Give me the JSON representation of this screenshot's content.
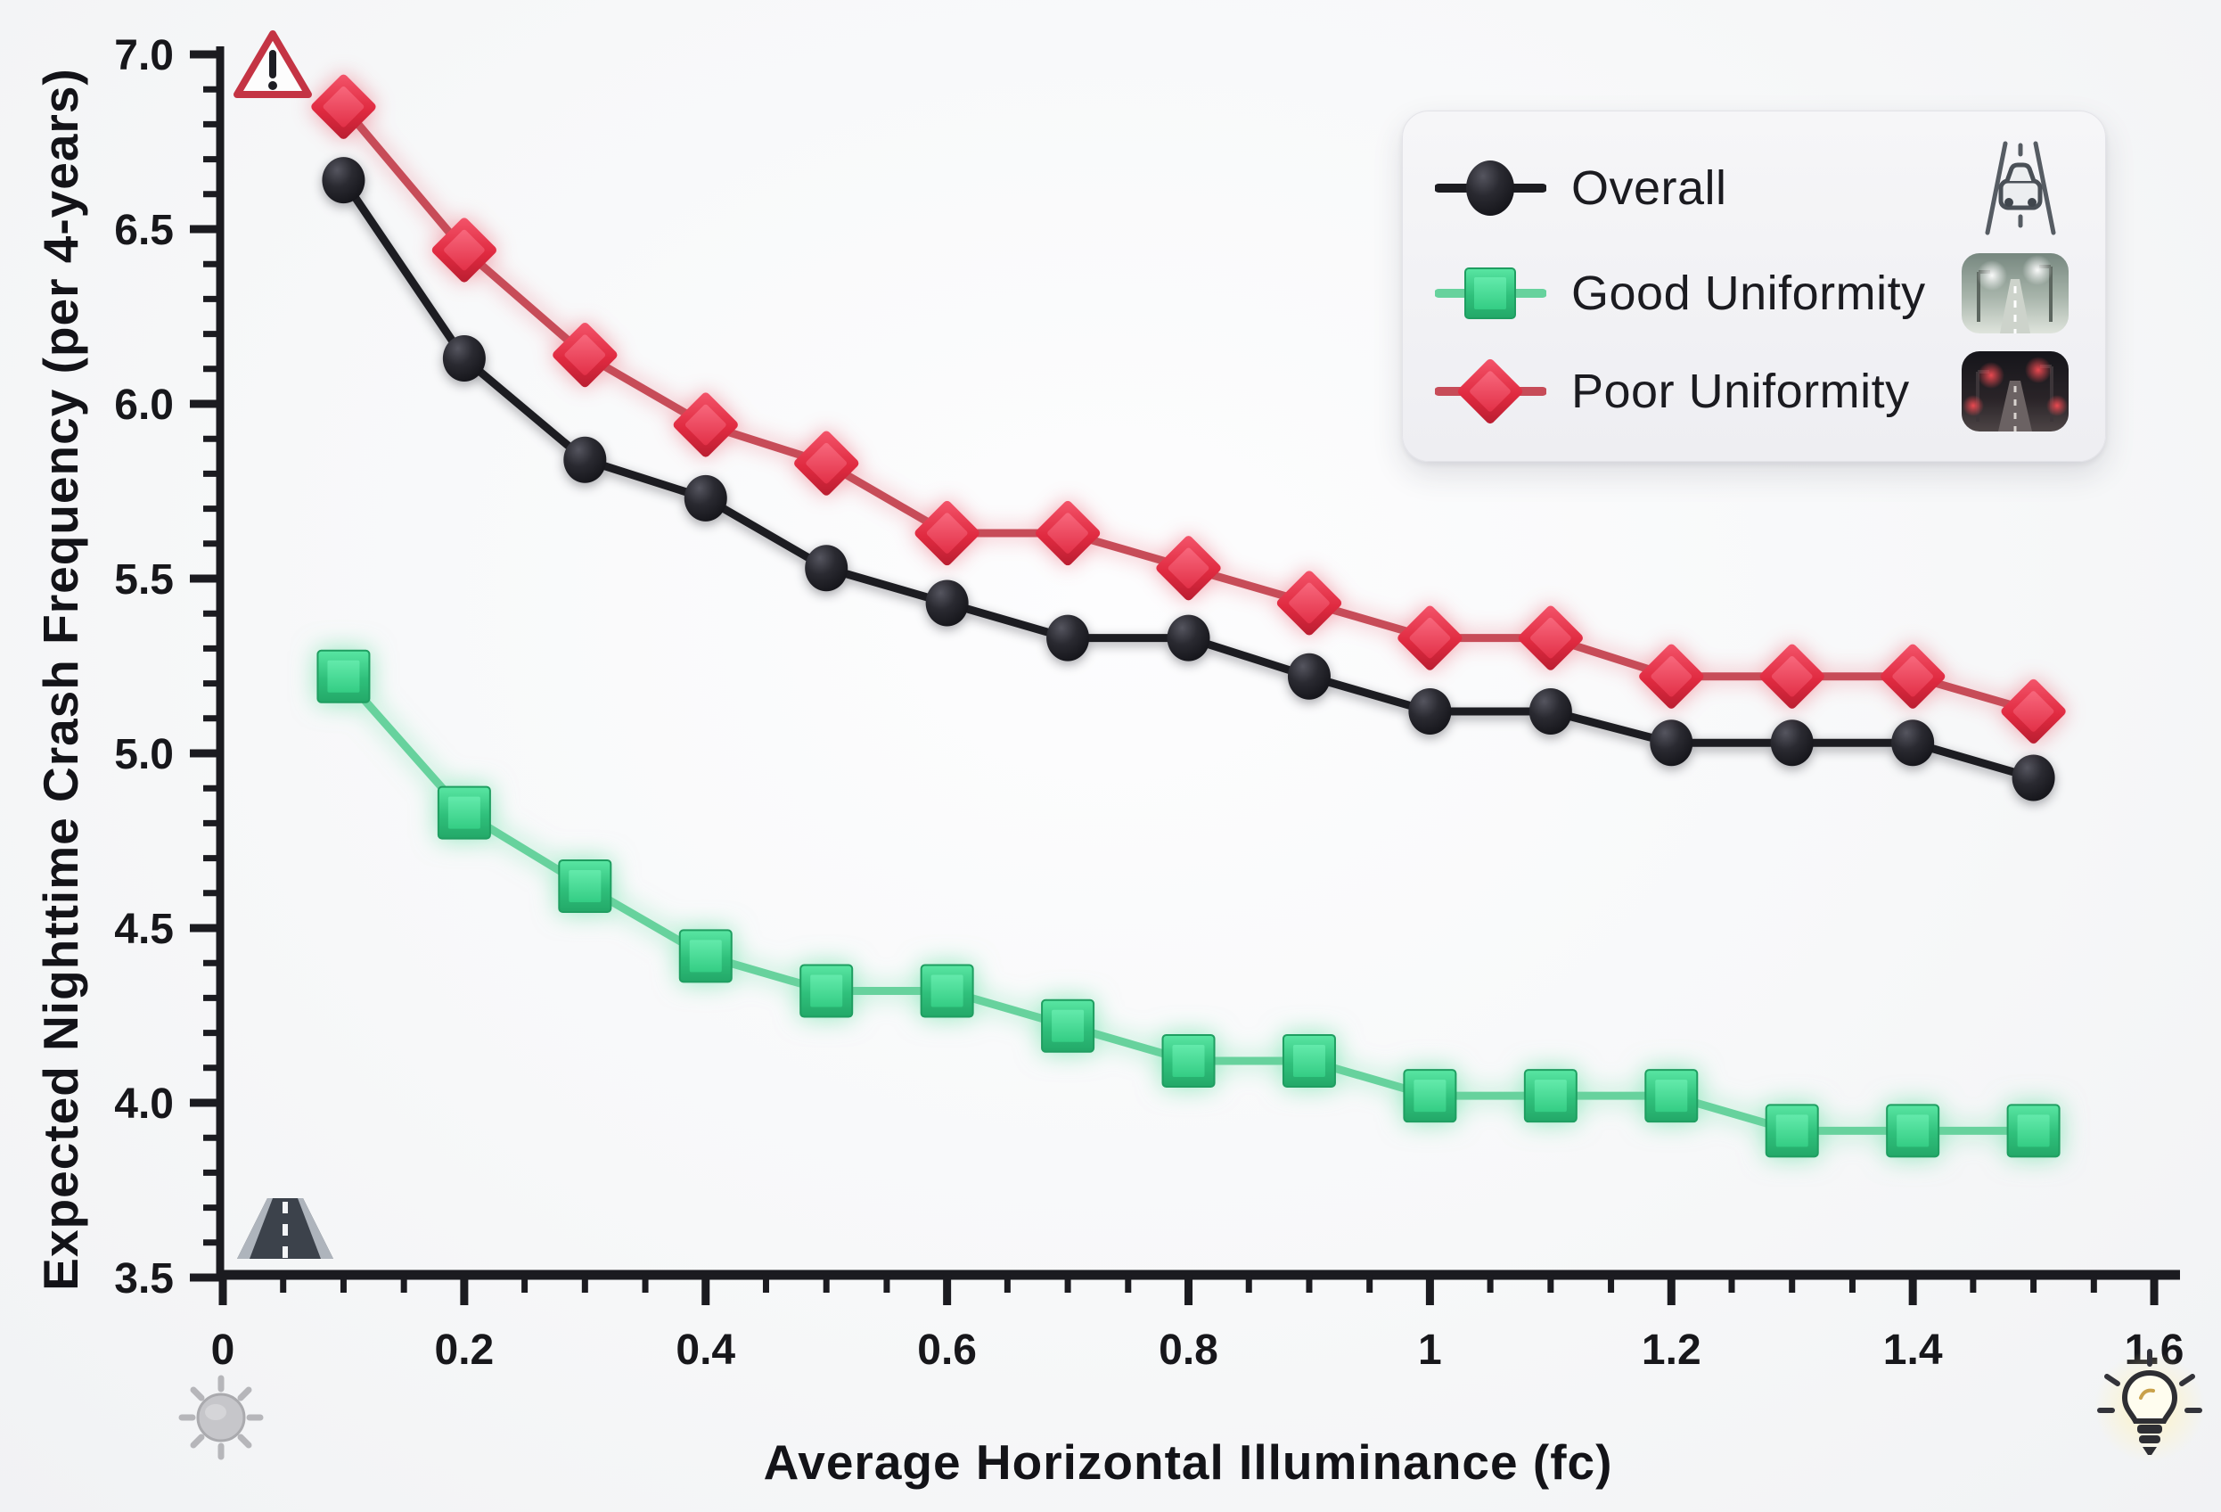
{
  "chart_data": {
    "type": "line",
    "title": "",
    "xlabel": "Average Horizontal Illuminance (fc)",
    "ylabel": "Expected Nighttime Crash Frequency (per 4-years)",
    "xlim": [
      0,
      1.6
    ],
    "ylim": [
      3.5,
      7.0
    ],
    "grid": false,
    "legend_position": "top-right",
    "x_major_ticks": [
      0,
      0.2,
      0.4,
      0.6,
      0.8,
      1.0,
      1.2,
      1.4,
      1.6
    ],
    "x_tick_labels": [
      "0",
      "0.2",
      "0.4",
      "0.6",
      "0.8",
      "1",
      "1.2",
      "1.4",
      "1.6"
    ],
    "x_minor_step": 0.05,
    "y_major_ticks": [
      3.5,
      4.0,
      4.5,
      5.0,
      5.5,
      6.0,
      6.5,
      7.0
    ],
    "y_tick_labels": [
      "3.5",
      "4.0",
      "4.5",
      "5.0",
      "5.5",
      "6.0",
      "6.5",
      "7.0"
    ],
    "y_minor_step": 0.1,
    "x": [
      0.1,
      0.2,
      0.3,
      0.4,
      0.5,
      0.6,
      0.7,
      0.8,
      0.9,
      1.0,
      1.1,
      1.2,
      1.3,
      1.4,
      1.5
    ],
    "series": [
      {
        "name": "Overall",
        "marker": "circle",
        "marker_color": "#1d1d23",
        "line_color": "#1c1c21",
        "values": [
          6.64,
          6.13,
          5.84,
          5.73,
          5.53,
          5.43,
          5.33,
          5.33,
          5.22,
          5.12,
          5.12,
          5.03,
          5.03,
          5.03,
          4.93
        ]
      },
      {
        "name": "Good Uniformity",
        "marker": "square",
        "marker_color": "#3eda8e",
        "line_color": "#67d29d",
        "values": [
          5.22,
          4.83,
          4.62,
          4.42,
          4.32,
          4.32,
          4.22,
          4.12,
          4.12,
          4.02,
          4.02,
          4.02,
          3.92,
          3.92,
          3.92
        ]
      },
      {
        "name": "Poor Uniformity",
        "marker": "diamond",
        "marker_color": "#e93a4e",
        "line_color": "#c74c58",
        "values": [
          6.85,
          6.44,
          6.14,
          5.94,
          5.83,
          5.63,
          5.63,
          5.53,
          5.43,
          5.33,
          5.33,
          5.22,
          5.22,
          5.22,
          5.12
        ]
      }
    ]
  },
  "legend": {
    "items": [
      {
        "label": "Overall",
        "icon": "car-road-icon"
      },
      {
        "label": "Good Uniformity",
        "icon": "lit-road-thumbnail"
      },
      {
        "label": "Poor Uniformity",
        "icon": "dark-road-thumbnail"
      }
    ]
  },
  "decorations": {
    "top_left": "warning-triangle-icon",
    "inside_plot_bottom_left": "road-icon",
    "below_axis_left": "dim-sun-icon",
    "bottom_right": "lightbulb-icon"
  },
  "colors": {
    "background": "#f7f8f9",
    "axis": "#1b1b20",
    "tick_text": "#17171b",
    "overall": "#1d1d23",
    "good_uniformity": "#3eda8e",
    "poor_uniformity": "#e93a4e",
    "legend_bg": "#f2f2f5"
  }
}
